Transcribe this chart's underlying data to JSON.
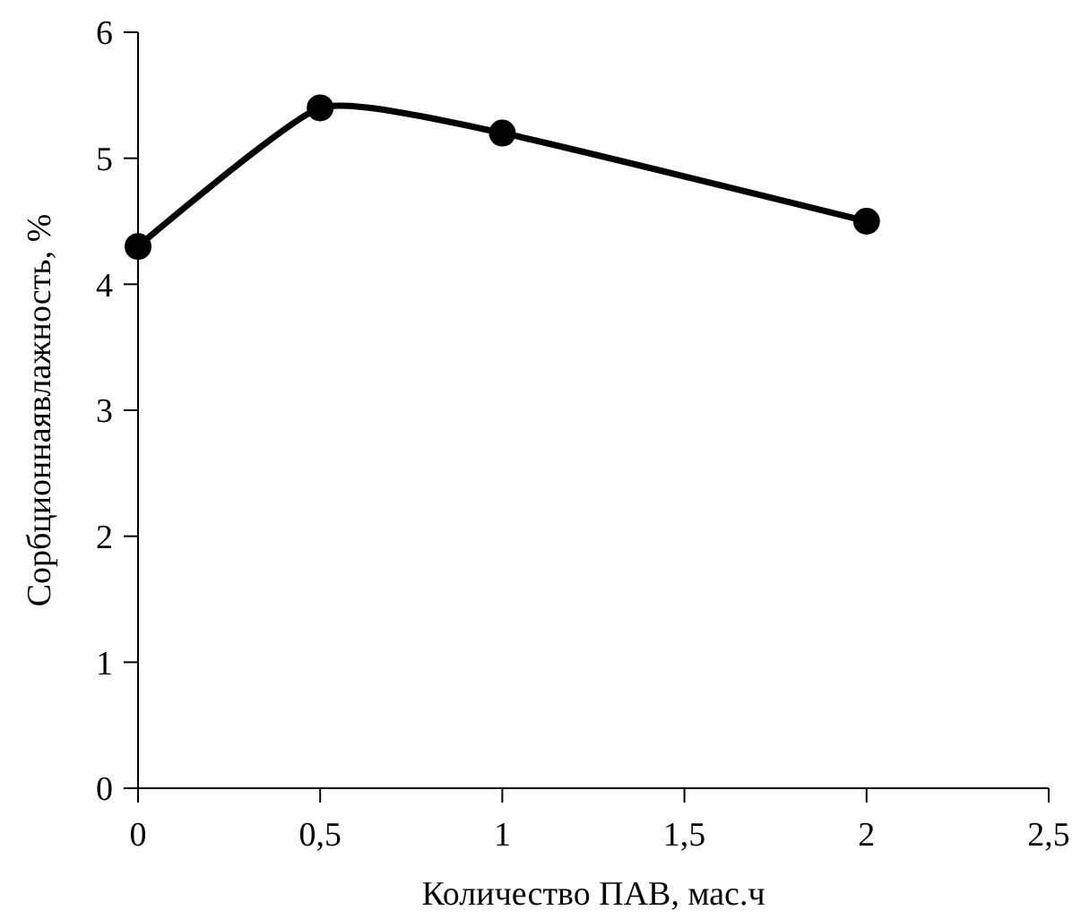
{
  "chart_data": {
    "type": "line",
    "xlabel": "Количество ПАВ, мас.ч",
    "ylabel": "Сорбционнаявлажность, %",
    "x": [
      0,
      0.5,
      1,
      2
    ],
    "series": [
      {
        "color": "#000000",
        "values": [
          4.3,
          5.4,
          5.2,
          4.5
        ]
      }
    ],
    "xlim": [
      0,
      2.5
    ],
    "xticks": [
      0,
      {
        "value": 0.5,
        "label": "0,5"
      },
      1,
      {
        "value": 1.5,
        "label": "1,5"
      },
      2,
      {
        "value": 2.5,
        "label": "2,5"
      }
    ],
    "ylim": [
      0,
      6
    ],
    "yticks": [
      0,
      1,
      2,
      3,
      4,
      5,
      6
    ],
    "marker": "circle",
    "line_style": "solid",
    "grid": false
  }
}
